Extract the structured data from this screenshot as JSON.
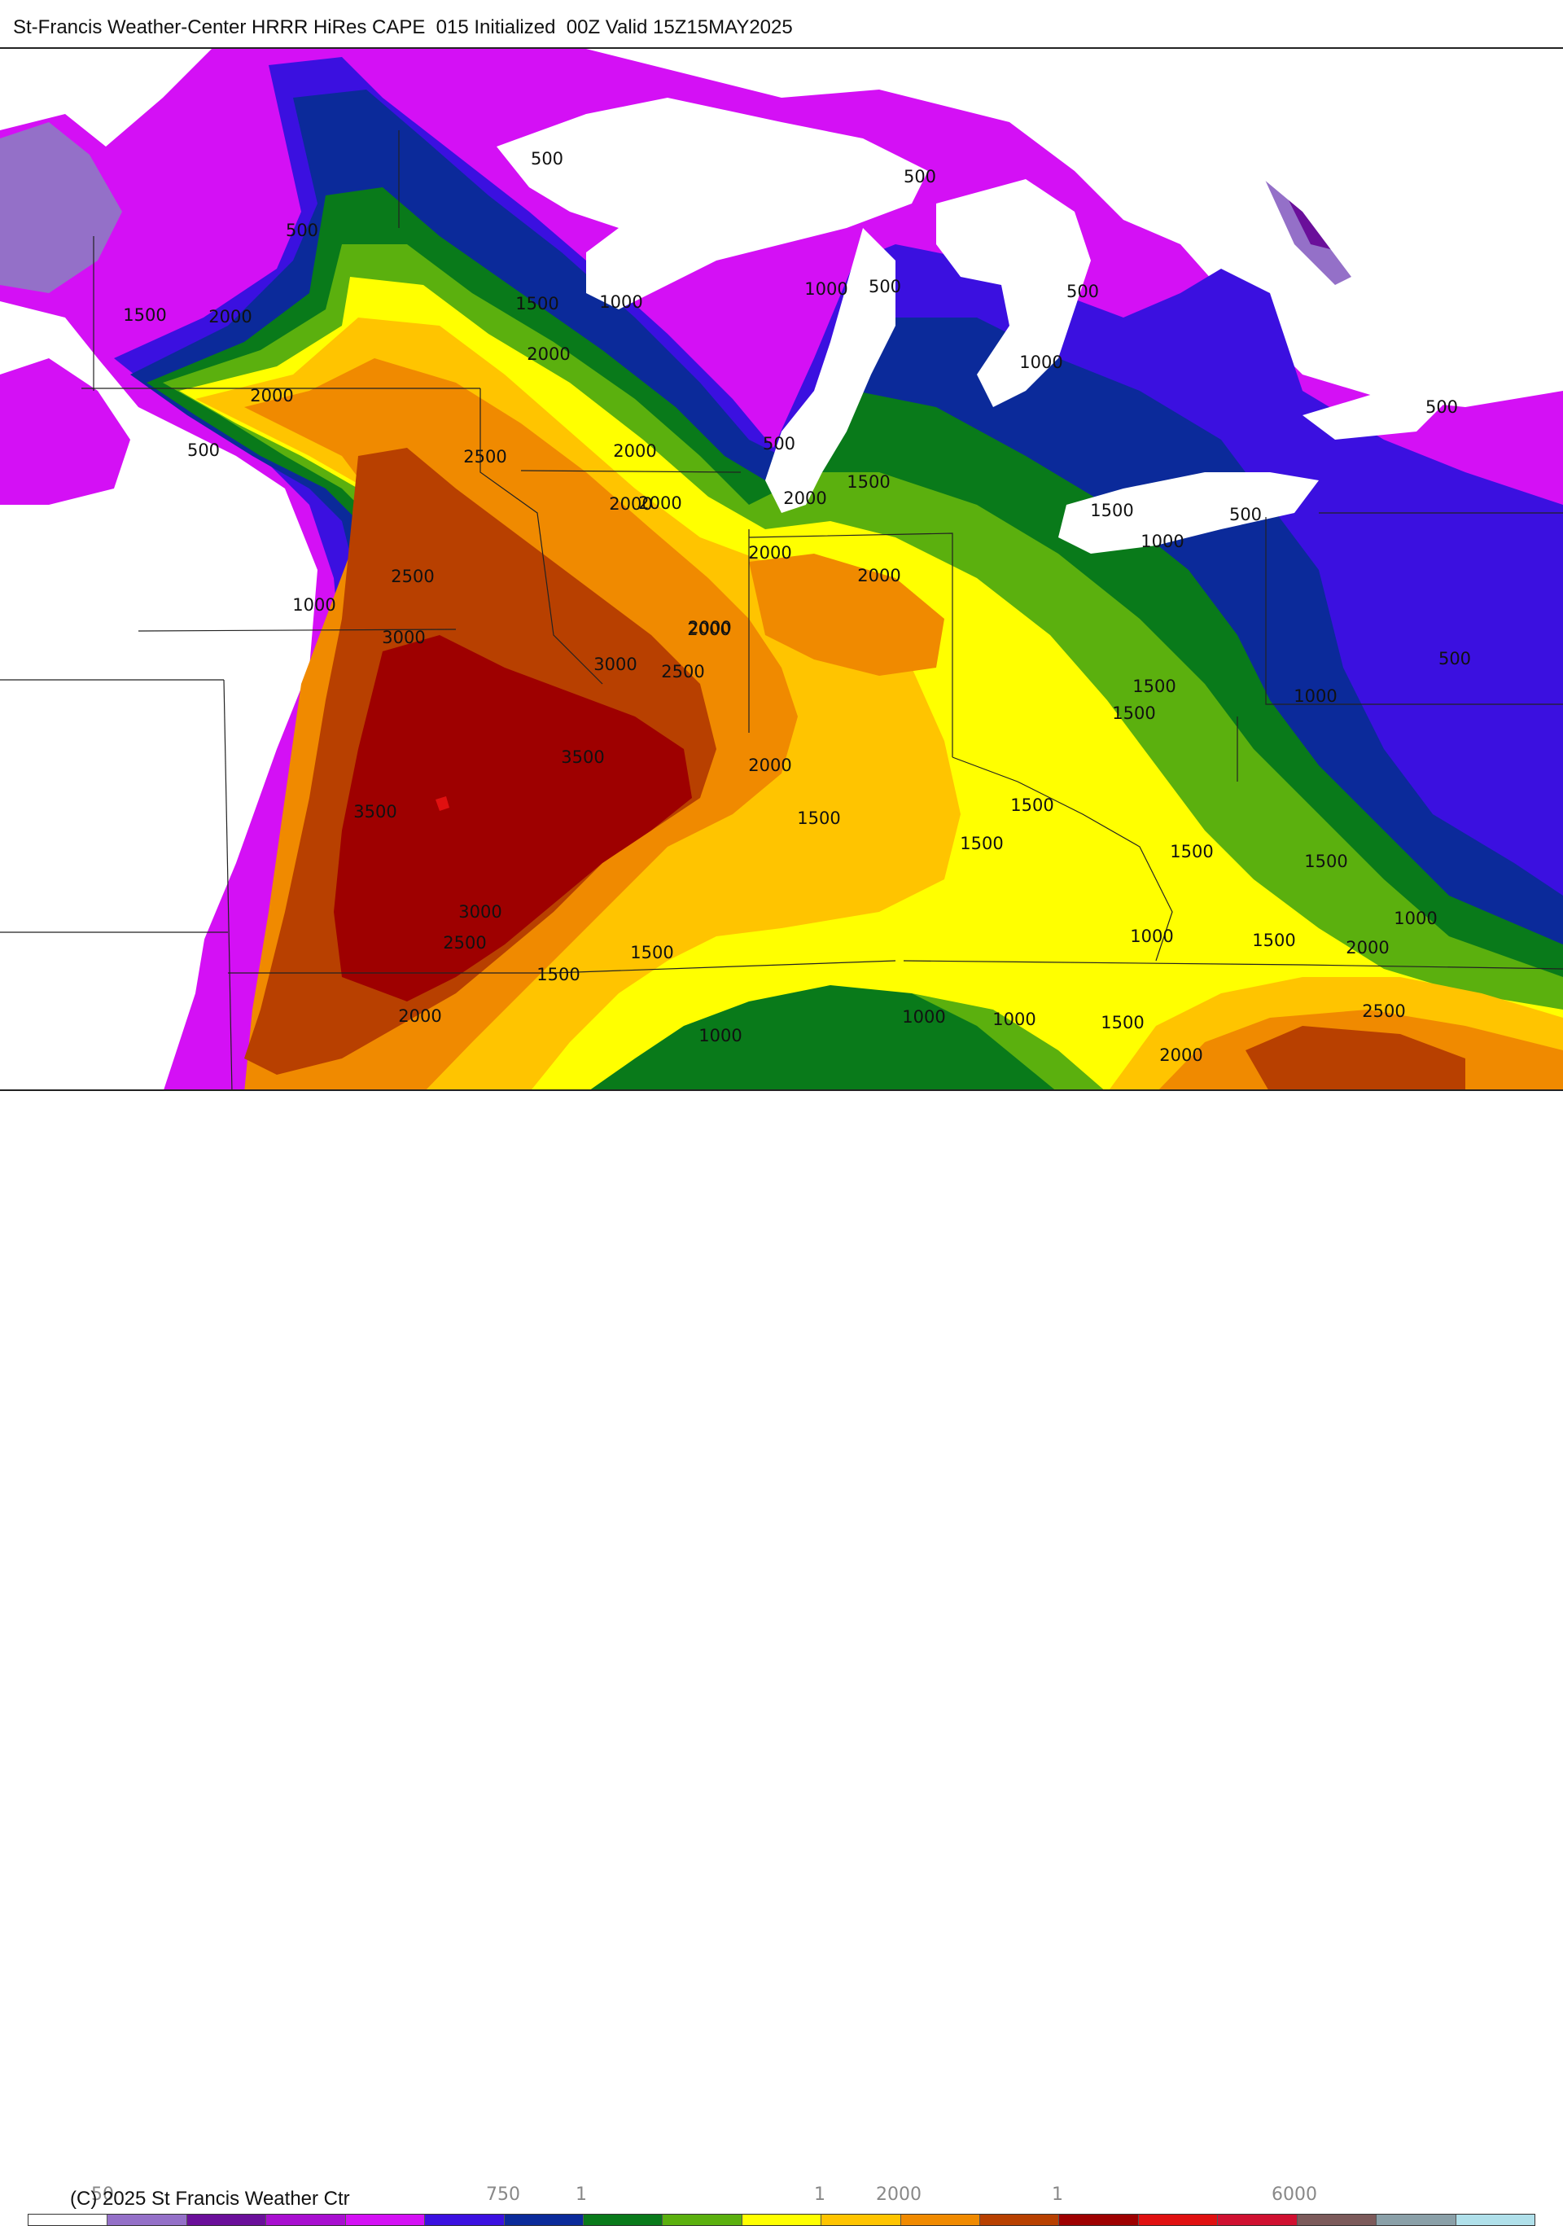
{
  "header": {
    "title": "St-Francis Weather-Center HRRR HiRes CAPE  015 Initialized  00Z Valid 15Z15MAY2025"
  },
  "map": {
    "field": "CAPE",
    "contour_labels": [
      "500",
      "500",
      "1500",
      "2000",
      "500",
      "1500",
      "1000",
      "2000",
      "2000",
      "500",
      "500",
      "1000",
      "500",
      "500",
      "1000",
      "1500",
      "2000",
      "2500",
      "2000",
      "2000",
      "2000",
      "1500",
      "500",
      "2000",
      "500",
      "2000",
      "2000",
      "1000",
      "2500",
      "3000",
      "2000",
      "3000",
      "2500",
      "1000",
      "500",
      "1500",
      "1500",
      "1000",
      "3500",
      "3500",
      "2000",
      "1500",
      "1500",
      "1500",
      "1500",
      "1500",
      "1000",
      "3000",
      "2500",
      "1500",
      "1500",
      "1000",
      "1500",
      "2000",
      "2000",
      "1000",
      "1000",
      "1500",
      "2500",
      "1000",
      "2000"
    ],
    "palette": {
      "white": "#ffffff",
      "lavender": "#9470c8",
      "dark_purple": "#6a0f9a",
      "purple": "#a80fd0",
      "magenta": "#d410f5",
      "violet": "#3b10e0",
      "navy": "#0b2a9a",
      "dark_green": "#097a1a",
      "green": "#5bb00e",
      "yellow": "#ffff00",
      "gold": "#ffc400",
      "orange": "#f08a00",
      "brown": "#b84000",
      "dark_red": "#9e0000",
      "red": "#e01010",
      "crimson": "#d01030",
      "mauve": "#7c5a5a",
      "gray": "#8aa0a8",
      "light_blue": "#b0e0ea",
      "lake": "#ffffff",
      "boundary": "#222222"
    }
  },
  "copyright": "(C) 2025 St Francis Weather Ctr",
  "legend": {
    "tick_labels": [
      "50",
      "750",
      "1",
      "1",
      "2000",
      "1",
      "6000"
    ],
    "colors": [
      "#ffffff",
      "#9470c8",
      "#6a0f9a",
      "#a80fd0",
      "#d410f5",
      "#3b10e0",
      "#0b2a9a",
      "#097a1a",
      "#5bb00e",
      "#ffff00",
      "#ffc400",
      "#f08a00",
      "#b84000",
      "#9e0000",
      "#e01010",
      "#d01030",
      "#7c5a5a",
      "#8aa0a8",
      "#b0e0ea"
    ]
  }
}
